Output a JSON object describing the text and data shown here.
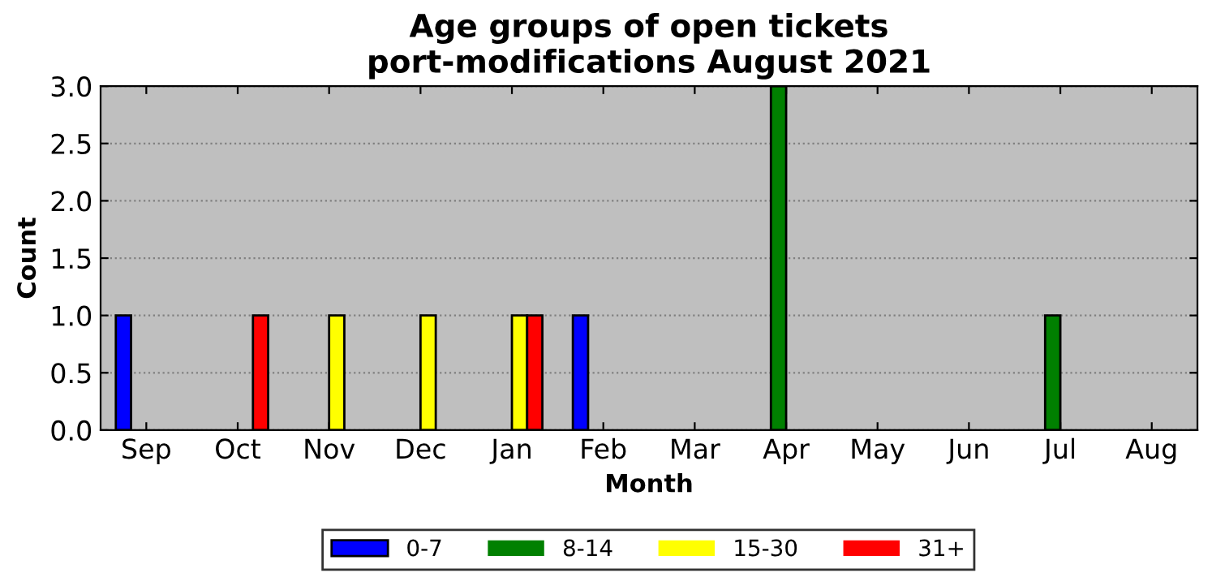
{
  "chart_data": {
    "type": "bar",
    "title": "Age groups of open tickets\nport-modifications August 2021",
    "xlabel": "Month",
    "ylabel": "Count",
    "categories": [
      "Sep",
      "Oct",
      "Nov",
      "Dec",
      "Jan",
      "Feb",
      "Mar",
      "Apr",
      "May",
      "Jun",
      "Jul",
      "Aug"
    ],
    "series": [
      {
        "name": "0-7",
        "color": "#0000ff",
        "values": [
          1,
          0,
          0,
          0,
          0,
          1,
          0,
          0,
          0,
          0,
          0,
          0
        ]
      },
      {
        "name": "8-14",
        "color": "#008000",
        "values": [
          0,
          0,
          0,
          0,
          0,
          0,
          0,
          3,
          0,
          0,
          1,
          0
        ]
      },
      {
        "name": "15-30",
        "color": "#ffff00",
        "values": [
          0,
          0,
          1,
          1,
          1,
          0,
          0,
          0,
          0,
          0,
          0,
          0
        ]
      },
      {
        "name": "31+",
        "color": "#ff0000",
        "values": [
          0,
          1,
          0,
          0,
          1,
          0,
          0,
          0,
          0,
          0,
          0,
          0
        ]
      }
    ],
    "ylim": [
      0,
      3
    ],
    "yticks": [
      {
        "value": 0,
        "label": "0.0"
      },
      {
        "value": 0.5,
        "label": "0.5"
      },
      {
        "value": 1,
        "label": "1.0"
      },
      {
        "value": 1.5,
        "label": "1.5"
      },
      {
        "value": 2,
        "label": "2.0"
      },
      {
        "value": 2.5,
        "label": "2.5"
      },
      {
        "value": 3,
        "label": "3.0"
      }
    ],
    "grid": "y",
    "legend": "bottom"
  }
}
